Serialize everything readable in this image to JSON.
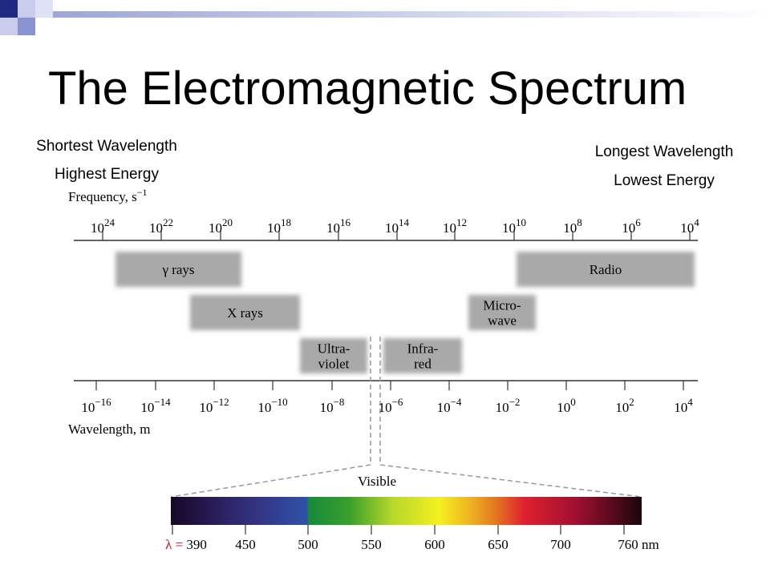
{
  "header": {
    "title": "The Electromagnetic Spectrum"
  },
  "left_note": [
    "Shortest Wavelength",
    "Highest Energy"
  ],
  "right_note": [
    "Longest Wavelength",
    "Lowest Energy"
  ],
  "frequency_axis": {
    "label": {
      "text": "Frequency, s",
      "superscript": "−1"
    },
    "ticks": [
      {
        "base": "10",
        "exponent": "24"
      },
      {
        "base": "10",
        "exponent": "22"
      },
      {
        "base": "10",
        "exponent": "20"
      },
      {
        "base": "10",
        "exponent": "18"
      },
      {
        "base": "10",
        "exponent": "16"
      },
      {
        "base": "10",
        "exponent": "14"
      },
      {
        "base": "10",
        "exponent": "12"
      },
      {
        "base": "10",
        "exponent": "10"
      },
      {
        "base": "10",
        "exponent": "8"
      },
      {
        "base": "10",
        "exponent": "6"
      },
      {
        "base": "10",
        "exponent": "4"
      }
    ]
  },
  "bands": [
    {
      "lines": [
        "γ rays"
      ]
    },
    {
      "lines": [
        "X rays"
      ]
    },
    {
      "lines": [
        "Ultra-",
        "violet"
      ]
    },
    {
      "lines": [
        "Infra-",
        "red"
      ]
    },
    {
      "lines": [
        "Micro-",
        "wave"
      ]
    },
    {
      "lines": [
        "Radio"
      ]
    }
  ],
  "wavelength_axis": {
    "label": "Wavelength, m",
    "ticks": [
      {
        "base": "10",
        "exponent": "−16"
      },
      {
        "base": "10",
        "exponent": "−14"
      },
      {
        "base": "10",
        "exponent": "−12"
      },
      {
        "base": "10",
        "exponent": "−10"
      },
      {
        "base": "10",
        "exponent": "−8"
      },
      {
        "base": "10",
        "exponent": "−6"
      },
      {
        "base": "10",
        "exponent": "−4"
      },
      {
        "base": "10",
        "exponent": "−2"
      },
      {
        "base": "10",
        "exponent": "0"
      },
      {
        "base": "10",
        "exponent": "2"
      },
      {
        "base": "10",
        "exponent": "4"
      }
    ]
  },
  "visible": {
    "label": "Visible",
    "symbol": "λ =",
    "ticks": [
      "390",
      "450",
      "500",
      "550",
      "600",
      "650",
      "700",
      "760"
    ],
    "unit": "nm"
  }
}
